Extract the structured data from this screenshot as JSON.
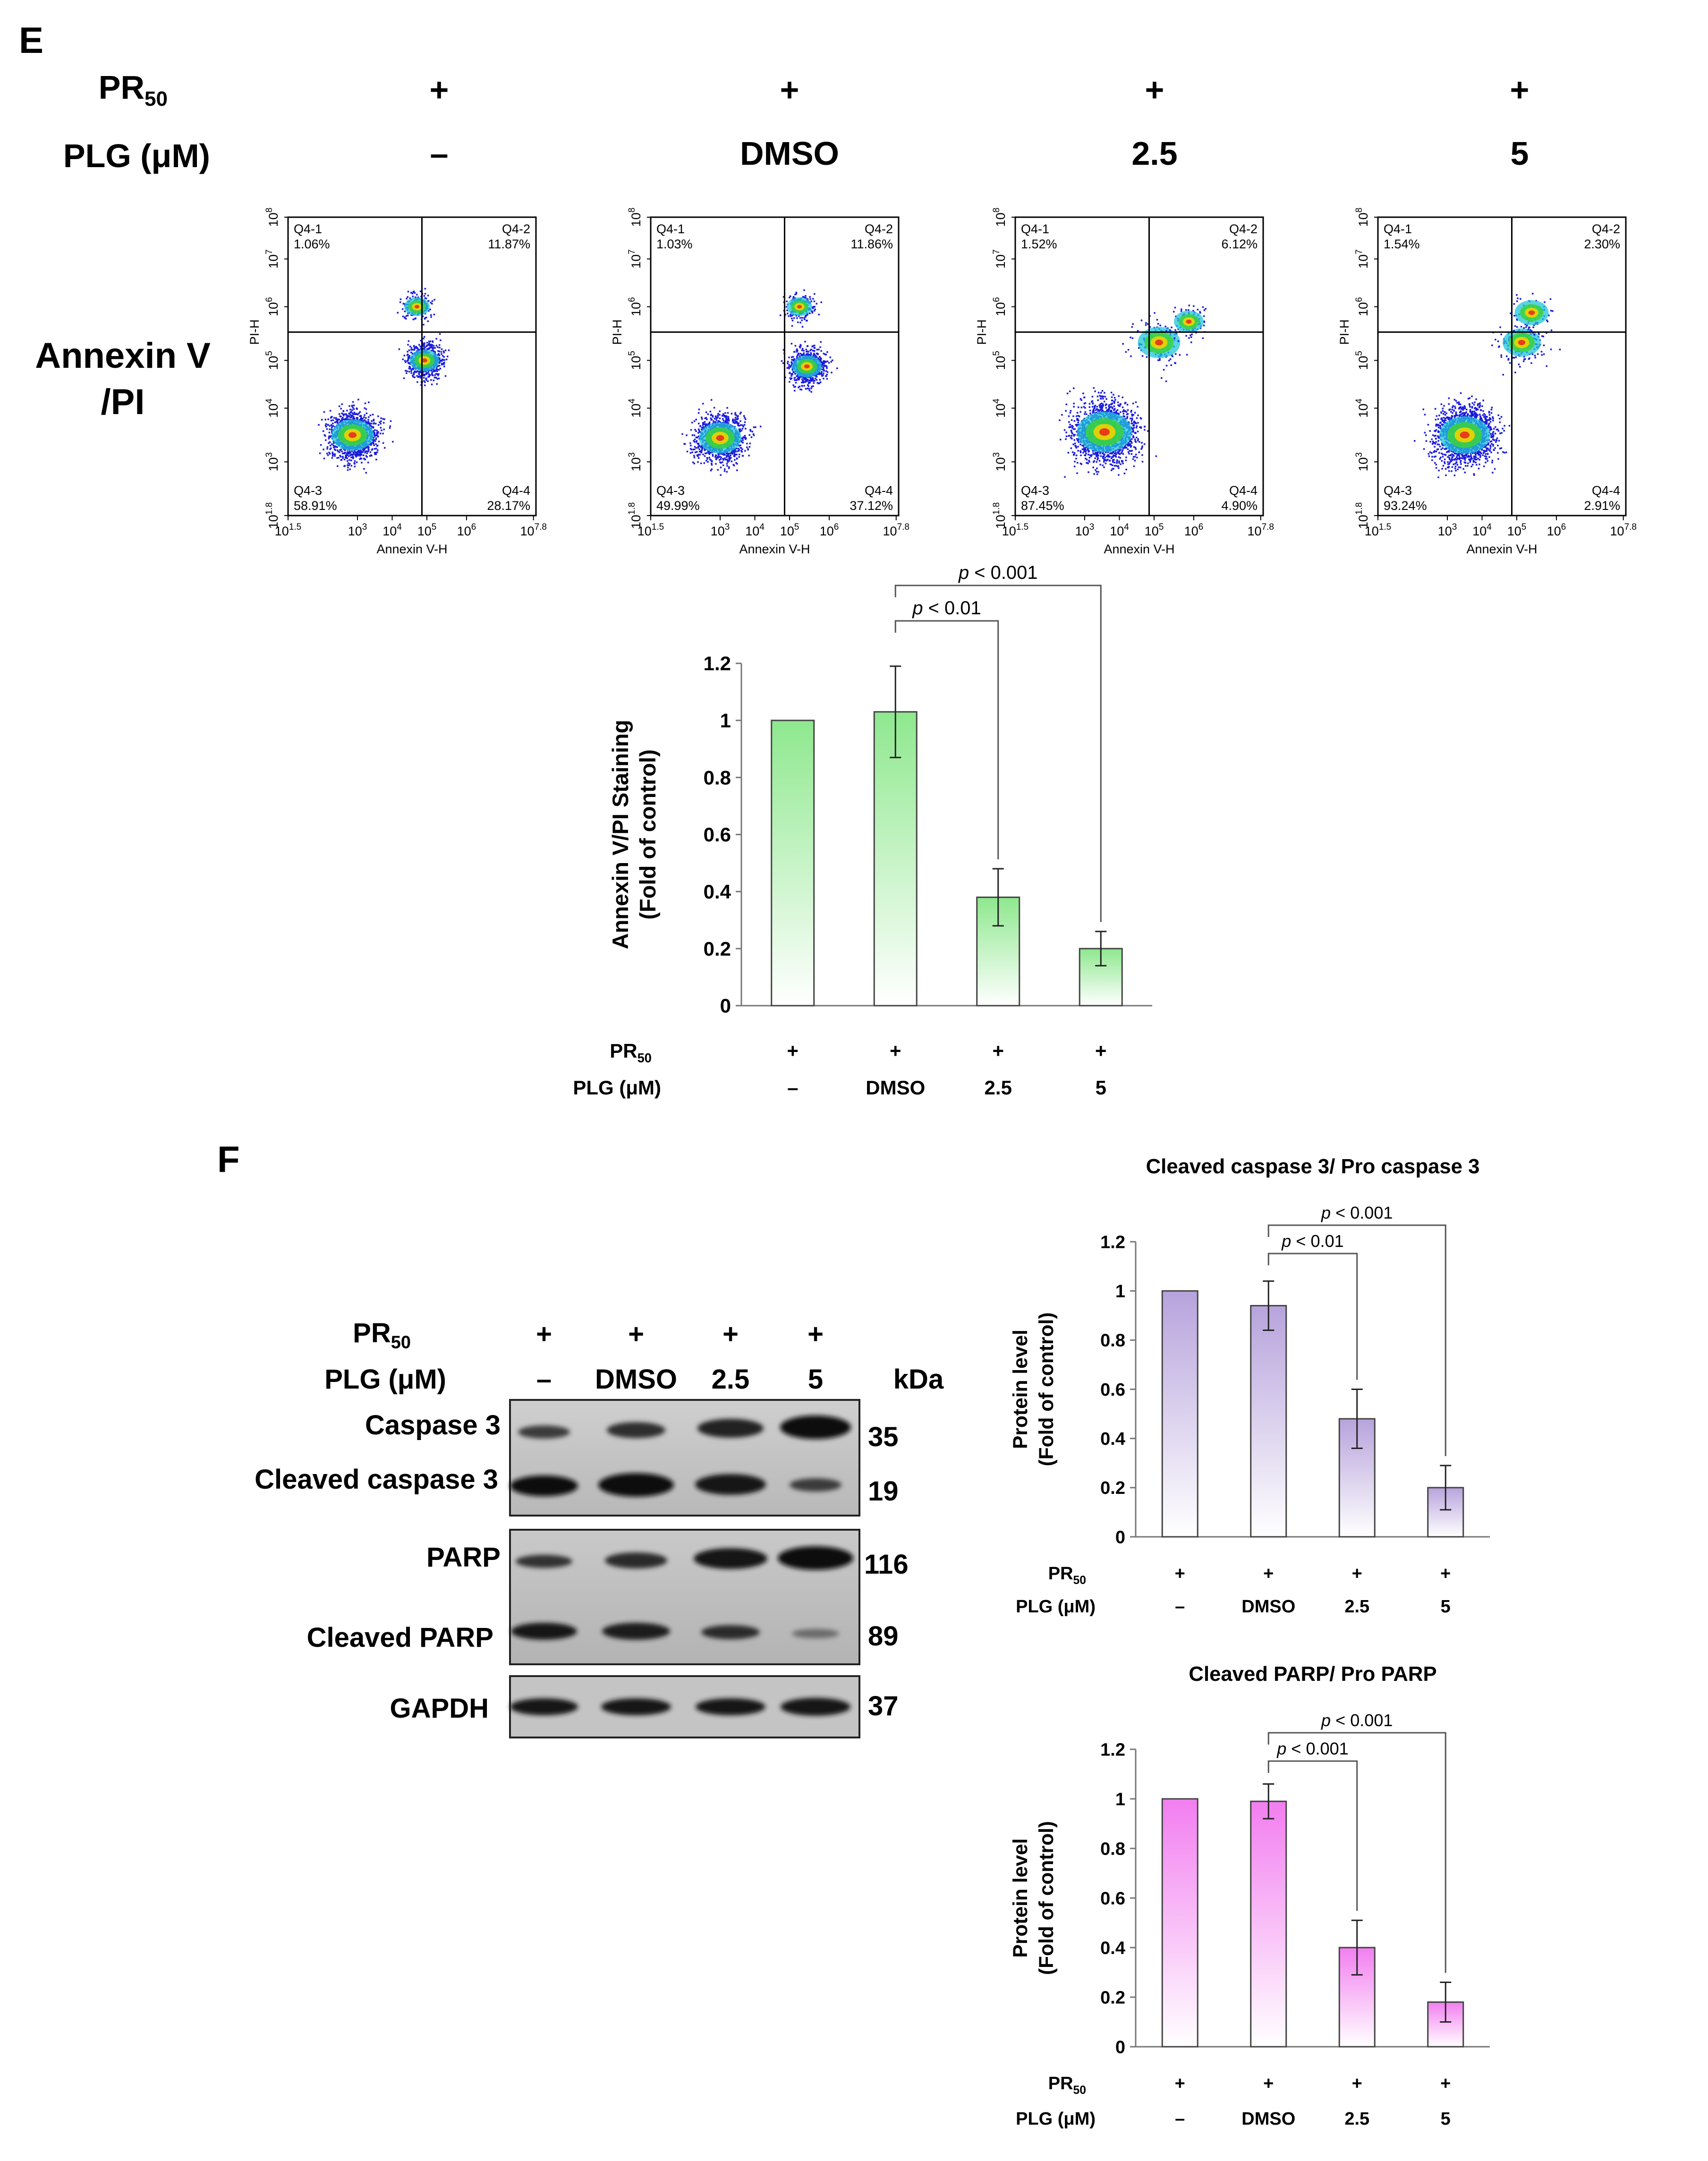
{
  "panel_e": {
    "letter": "E",
    "treatment_header": {
      "pr_label": "PR",
      "pr_sub": "50",
      "plg_label": "PLG (μM)",
      "pr_values": [
        "+",
        "+",
        "+",
        "+"
      ],
      "plg_values": [
        "–",
        "DMSO",
        "2.5",
        "5"
      ]
    },
    "row_label_line1": "Annexin V",
    "row_label_line2": "/PI",
    "flow_plots": [
      {
        "q1_name": "Q4-1",
        "q1_val": "1.06%",
        "q2_name": "Q4-2",
        "q2_val": "11.87%",
        "q3_name": "Q4-3",
        "q3_val": "58.91%",
        "q4_name": "Q4-4",
        "q4_val": "28.17%"
      },
      {
        "q1_name": "Q4-1",
        "q1_val": "1.03%",
        "q2_name": "Q4-2",
        "q2_val": "11.86%",
        "q3_name": "Q4-3",
        "q3_val": "49.99%",
        "q4_name": "Q4-4",
        "q4_val": "37.12%"
      },
      {
        "q1_name": "Q4-1",
        "q1_val": "1.52%",
        "q2_name": "Q4-2",
        "q2_val": "6.12%",
        "q3_name": "Q4-3",
        "q3_val": "87.45%",
        "q4_name": "Q4-4",
        "q4_val": "4.90%"
      },
      {
        "q1_name": "Q4-1",
        "q1_val": "1.54%",
        "q2_name": "Q4-2",
        "q2_val": "2.30%",
        "q3_name": "Q4-3",
        "q3_val": "93.24%",
        "q4_name": "Q4-4",
        "q4_val": "2.91%"
      }
    ],
    "flow_axes": {
      "x_label": "Annexin V-H",
      "y_label": "PI-H",
      "x_ticks": [
        "10^1.5",
        "10^3",
        "10^4",
        "10^5",
        "10^6",
        "10^7.8"
      ],
      "y_ticks": [
        "10^1.8",
        "10^3",
        "10^4",
        "10^5",
        "10^6",
        "10^7",
        "10^8"
      ]
    }
  },
  "panel_f": {
    "letter": "F",
    "blot": {
      "pr_label": "PR",
      "pr_sub": "50",
      "plg_label": "PLG (μM)",
      "pr_values": [
        "+",
        "+",
        "+",
        "+"
      ],
      "plg_values": [
        "–",
        "DMSO",
        "2.5",
        "5"
      ],
      "kda_label": "kDa",
      "bands": [
        {
          "name": "Caspase 3",
          "kda": "35"
        },
        {
          "name": "Cleaved caspase 3",
          "kda": "19"
        },
        {
          "name": "PARP",
          "kda": "116"
        },
        {
          "name": "Cleaved PARP",
          "kda": "89"
        },
        {
          "name": "GAPDH",
          "kda": "37"
        }
      ]
    }
  },
  "colors": {
    "green_bar": "#8ee88e",
    "purple_bar": "#b7a3dc",
    "pink_bar": "#f27ef0"
  },
  "chart_data": [
    {
      "type": "bar",
      "id": "annexin",
      "title": "",
      "ylabel": "Annexin V/PI Staining",
      "ylabel2": "(Fold of control)",
      "ylim": [
        0,
        1.2
      ],
      "yticks": [
        "0",
        "0.2",
        "0.4",
        "0.6",
        "0.8",
        "1",
        "1.2"
      ],
      "categories": [
        "–",
        "DMSO",
        "2.5",
        "5"
      ],
      "pr_row": [
        "+",
        "+",
        "+",
        "+"
      ],
      "row_labels": {
        "pr": "PR",
        "pr_sub": "50",
        "plg": "PLG (μM)"
      },
      "values": [
        1.0,
        1.03,
        0.38,
        0.2
      ],
      "errors": [
        0,
        0.16,
        0.1,
        0.06
      ],
      "significance": [
        {
          "from": 1,
          "to": 2,
          "label": "p",
          "rest": " < 0.01"
        },
        {
          "from": 1,
          "to": 3,
          "label": "p",
          "rest": " < 0.001"
        }
      ]
    },
    {
      "type": "bar",
      "id": "caspase",
      "title": "Cleaved caspase 3/ Pro caspase 3",
      "ylabel": "Protein level",
      "ylabel2": "(Fold of control)",
      "ylim": [
        0,
        1.2
      ],
      "yticks": [
        "0",
        "0.2",
        "0.4",
        "0.6",
        "0.8",
        "1",
        "1.2"
      ],
      "categories": [
        "–",
        "DMSO",
        "2.5",
        "5"
      ],
      "pr_row": [
        "+",
        "+",
        "+",
        "+"
      ],
      "row_labels": {
        "pr": "PR",
        "pr_sub": "50",
        "plg": "PLG (μM)"
      },
      "values": [
        1.0,
        0.94,
        0.48,
        0.2
      ],
      "errors": [
        0,
        0.1,
        0.12,
        0.09
      ],
      "significance": [
        {
          "from": 1,
          "to": 2,
          "label": "p",
          "rest": " < 0.01"
        },
        {
          "from": 1,
          "to": 3,
          "label": "p",
          "rest": " < 0.001"
        }
      ]
    },
    {
      "type": "bar",
      "id": "parp",
      "title": "Cleaved PARP/ Pro PARP",
      "ylabel": "Protein level",
      "ylabel2": "(Fold of control)",
      "ylim": [
        0,
        1.2
      ],
      "yticks": [
        "0",
        "0.2",
        "0.4",
        "0.6",
        "0.8",
        "1",
        "1.2"
      ],
      "categories": [
        "–",
        "DMSO",
        "2.5",
        "5"
      ],
      "pr_row": [
        "+",
        "+",
        "+",
        "+"
      ],
      "row_labels": {
        "pr": "PR",
        "pr_sub": "50",
        "plg": "PLG (μM)"
      },
      "values": [
        1.0,
        0.99,
        0.4,
        0.18
      ],
      "errors": [
        0,
        0.07,
        0.11,
        0.08
      ],
      "significance": [
        {
          "from": 1,
          "to": 2,
          "label": "p",
          "rest": " < 0.001"
        },
        {
          "from": 1,
          "to": 3,
          "label": "p",
          "rest": " < 0.001"
        }
      ]
    }
  ]
}
